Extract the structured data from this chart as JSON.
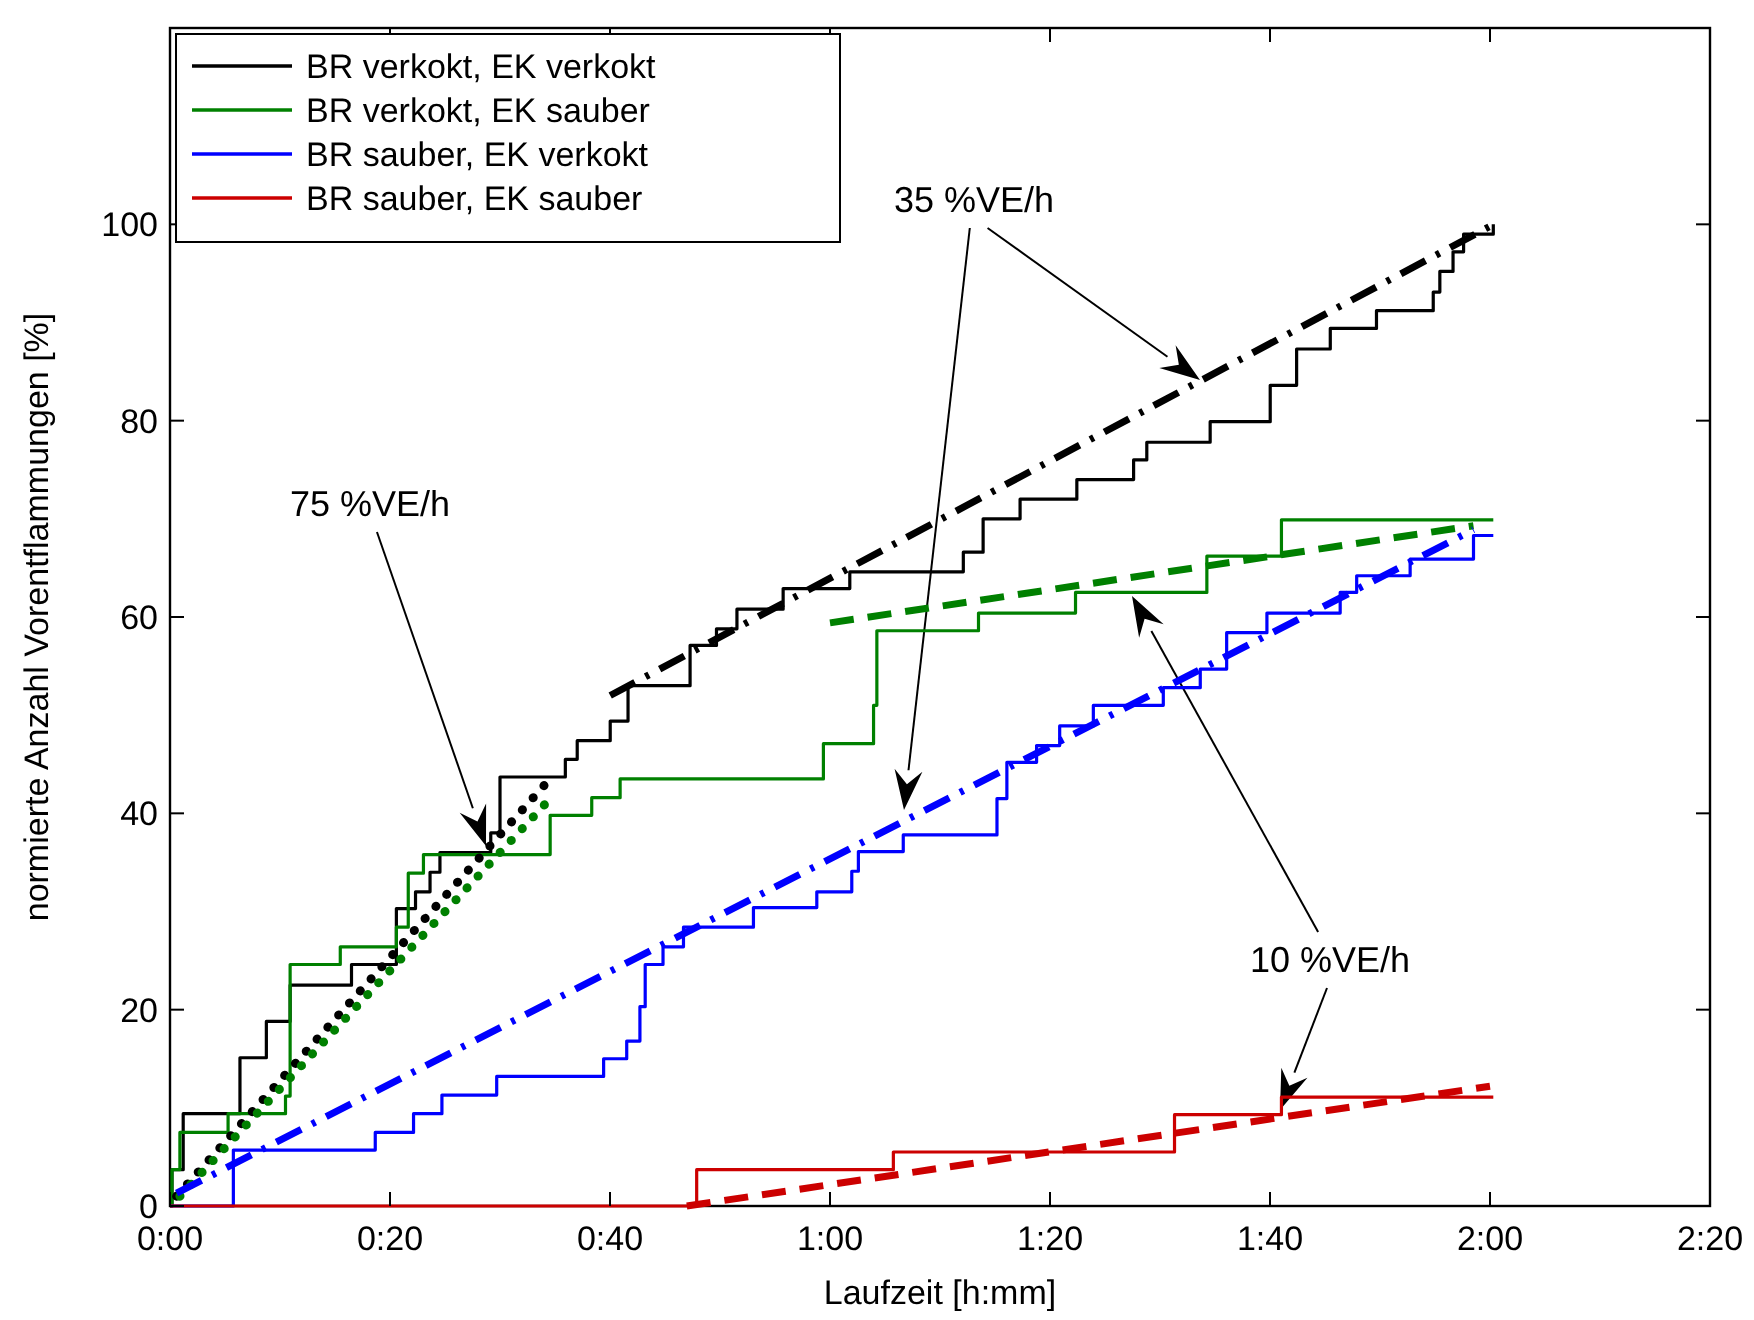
{
  "chart_data": {
    "type": "step",
    "xlabel": "Laufzeit [h:mm]",
    "ylabel": "normierte Anzahl Vorentflammungen [%]",
    "xlim": [
      0,
      2.333333
    ],
    "ylim": [
      0,
      120
    ],
    "xticks": [
      {
        "value": 0,
        "label": "0:00"
      },
      {
        "value": 0.333333,
        "label": "0:20"
      },
      {
        "value": 0.666667,
        "label": "0:40"
      },
      {
        "value": 1,
        "label": "1:00"
      },
      {
        "value": 1.333333,
        "label": "1:20"
      },
      {
        "value": 1.666667,
        "label": "1:40"
      },
      {
        "value": 2,
        "label": "2:00"
      },
      {
        "value": 2.333333,
        "label": "2:20"
      }
    ],
    "yticks": [
      0,
      20,
      40,
      60,
      80,
      100
    ],
    "grid": false,
    "legend": "top left",
    "annotations": [
      "75 %VE/h",
      "35 %VE/h",
      "10 %VE/h"
    ],
    "series": [
      {
        "name": "BR verkokt, EK verkokt",
        "color": "#000000",
        "line_style": "solid",
        "x": [
          0,
          0.003,
          0.02,
          0.106,
          0.146,
          0.182,
          0.275,
          0.343,
          0.372,
          0.394,
          0.409,
          0.486,
          0.5,
          0.599,
          0.617,
          0.667,
          0.694,
          0.788,
          0.828,
          0.859,
          0.929,
          1.03,
          1.202,
          1.232,
          1.288,
          1.374,
          1.46,
          1.48,
          1.576,
          1.667,
          1.707,
          1.758,
          1.828,
          1.914,
          1.924,
          1.944,
          1.96,
          2.005
        ],
        "values": [
          0,
          3.7,
          9.4,
          15.1,
          18.8,
          22.5,
          24.6,
          30.3,
          32,
          34,
          36,
          38,
          43.7,
          45.5,
          47.4,
          49.4,
          53,
          57.1,
          58.8,
          60.8,
          62.9,
          64.6,
          66.6,
          70,
          72,
          74,
          76,
          77.8,
          79.9,
          83.6,
          87.3,
          89.4,
          91.2,
          93.1,
          95.2,
          97.2,
          99,
          100
        ]
      },
      {
        "name": "BR verkokt, EK sauber",
        "color": "#008000",
        "line_style": "solid",
        "x": [
          0,
          0.003,
          0.015,
          0.088,
          0.175,
          0.182,
          0.258,
          0.343,
          0.361,
          0.384,
          0.576,
          0.639,
          0.682,
          0.99,
          1.066,
          1.071,
          1.225,
          1.372,
          1.571,
          1.684,
          2.005
        ],
        "values": [
          0,
          3.7,
          7.5,
          9.4,
          11.2,
          24.6,
          26.4,
          28.4,
          33.9,
          35.8,
          39.8,
          41.6,
          43.5,
          47.1,
          51,
          58.6,
          60.4,
          62.5,
          66.2,
          69.9,
          69.9
        ]
      },
      {
        "name": "BR sauber, EK verkokt",
        "color": "#0000ff",
        "line_style": "solid",
        "x": [
          0,
          0.096,
          0.311,
          0.369,
          0.412,
          0.495,
          0.657,
          0.692,
          0.712,
          0.72,
          0.747,
          0.778,
          0.884,
          0.98,
          1.033,
          1.043,
          1.111,
          1.253,
          1.268,
          1.313,
          1.348,
          1.399,
          1.505,
          1.561,
          1.601,
          1.662,
          1.773,
          1.798,
          1.879,
          1.975,
          2.005
        ],
        "values": [
          0,
          5.7,
          7.5,
          9.4,
          11.3,
          13.2,
          15,
          16.8,
          20.3,
          24.6,
          26.4,
          28.4,
          30.4,
          32,
          34.1,
          36.1,
          37.8,
          41.5,
          45.2,
          46.9,
          48.9,
          51,
          52.8,
          54.7,
          58.4,
          60.4,
          62.5,
          64.2,
          65.9,
          68.3,
          68.3
        ]
      },
      {
        "name": "BR sauber, EK sauber",
        "color": "#cc0000",
        "line_style": "solid",
        "x": [
          0,
          0.798,
          1.096,
          1.522,
          1.684,
          2.005
        ],
        "values": [
          0,
          3.7,
          5.5,
          9.3,
          11.1,
          11.1
        ]
      },
      {
        "type": "line",
        "color": "#000000",
        "line_style": "dashdot",
        "x": [
          0.667,
          2.0
        ],
        "values": [
          52,
          99.8
        ]
      },
      {
        "type": "line",
        "color": "#000000",
        "line_style": "dotted",
        "x": [
          0.01,
          0.581
        ],
        "values": [
          1,
          43.9
        ]
      },
      {
        "type": "line",
        "color": "#008000",
        "line_style": "dotted",
        "x": [
          0.015,
          0.583
        ],
        "values": [
          1,
          42
        ]
      },
      {
        "type": "line",
        "color": "#008000",
        "line_style": "dashed",
        "x": [
          1.0,
          1.975
        ],
        "values": [
          59.4,
          69.3
        ]
      },
      {
        "type": "line",
        "color": "#0000ff",
        "line_style": "dashdot",
        "x": [
          0.01,
          1.975
        ],
        "values": [
          1.3,
          68.9
        ]
      },
      {
        "type": "line",
        "color": "#cc0000",
        "line_style": "dashed",
        "x": [
          0.783,
          2.0
        ],
        "values": [
          0,
          12.2
        ]
      }
    ]
  }
}
